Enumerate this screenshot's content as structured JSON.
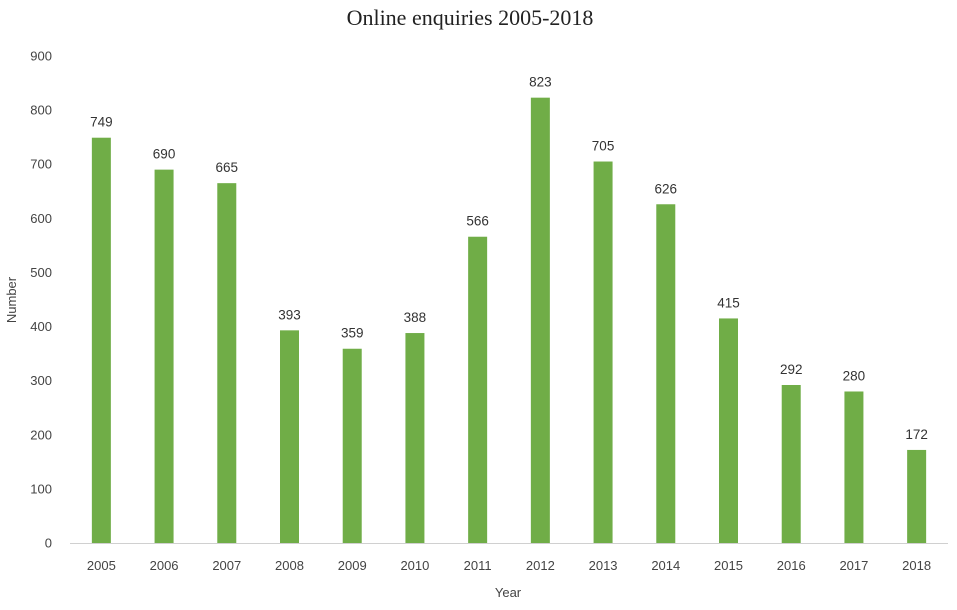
{
  "chart_data": {
    "type": "bar",
    "title": "Online enquiries 2005-2018",
    "xlabel": "Year",
    "ylabel": "Number",
    "ylim": [
      0,
      900
    ],
    "yticks": [
      0,
      100,
      200,
      300,
      400,
      500,
      600,
      700,
      800,
      900
    ],
    "categories": [
      "2005",
      "2006",
      "2007",
      "2008",
      "2009",
      "2010",
      "2011",
      "2012",
      "2013",
      "2014",
      "2015",
      "2016",
      "2017",
      "2018"
    ],
    "values": [
      749,
      690,
      665,
      393,
      359,
      388,
      566,
      823,
      705,
      626,
      415,
      292,
      280,
      172
    ],
    "bar_color": "#70ad47",
    "grid": false,
    "legend": "none"
  }
}
